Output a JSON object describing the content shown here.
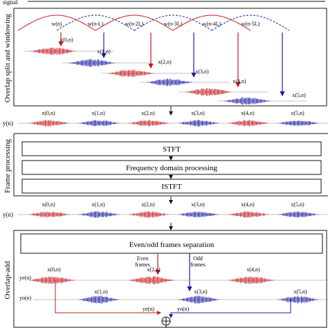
{
  "top_label": "signal",
  "sections": {
    "overlap_split": "Overlap split and windowing",
    "frame_processing": "Frame processing",
    "overlap_add": "Overlap-add"
  },
  "windows": [
    "w(n)",
    "w(n-L)",
    "w(n-2L)",
    "w(n-3L)",
    "w(n-4L)",
    "w(n-5L)"
  ],
  "frames": [
    "x(0,n)",
    "x(1,n)",
    "x(2,n)",
    "x(3,n)",
    "x(4,n)",
    "x(5,n)"
  ],
  "signal_label": "y(n)",
  "even_signal": "ye(n)",
  "odd_signal": "yo(n)",
  "boxes": {
    "stft": "STFT",
    "freq": "Frequency domain processing",
    "istft": "ISTFT",
    "separation": "Even/odd frames separation"
  },
  "even_frames": [
    "Even",
    "frames"
  ],
  "odd_frames": [
    "Odd",
    "frames"
  ],
  "colors": {
    "even": "#c8181e",
    "odd": "#1a1aa8",
    "line": "#111111",
    "gray": "#888888"
  }
}
